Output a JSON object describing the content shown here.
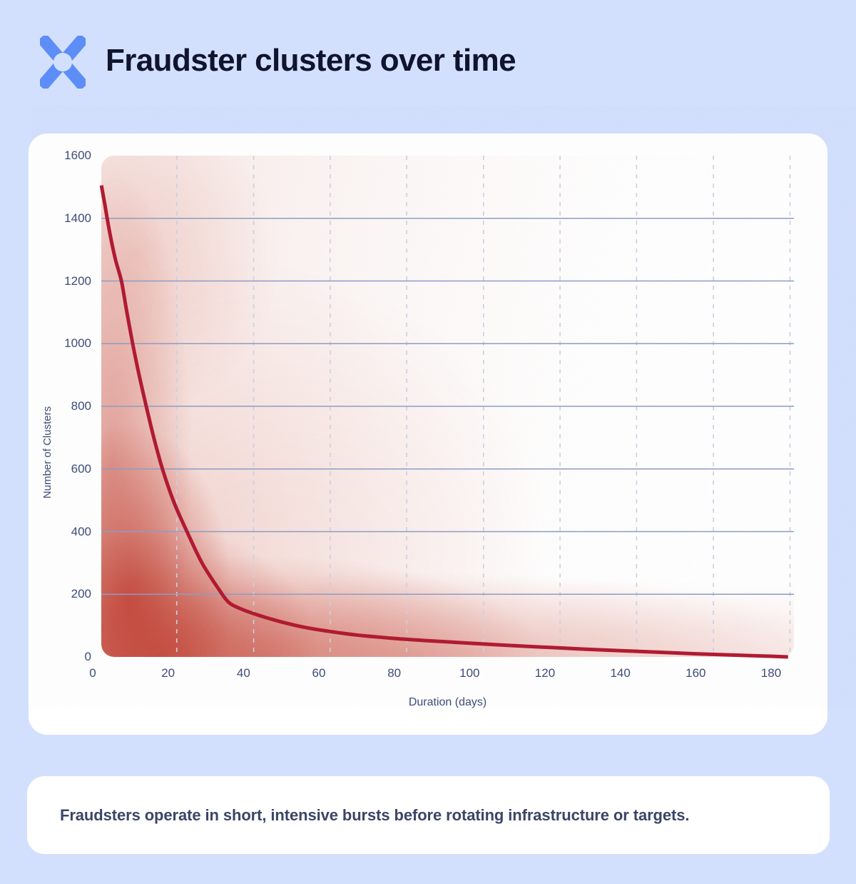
{
  "header": {
    "title": "Fraudster clusters over time",
    "logo_icon": "x-mark-logo"
  },
  "colors": {
    "background": "#d3e0fd",
    "card": "#ffffff",
    "title_text": "#10142e",
    "axis_text": "#3e4c78",
    "grid_solid": "#8d9cc5",
    "grid_dashed": "#c9d0e3",
    "line": "#b01b31",
    "density": "#c4473a",
    "logo": "#5d8df6",
    "caption_text": "#3b4566"
  },
  "chart_data": {
    "type": "line",
    "xlabel": "Duration (days)",
    "ylabel": "Number of Clusters",
    "xlim": [
      0,
      186
    ],
    "ylim": [
      0,
      1600
    ],
    "x_ticks": [
      0,
      20,
      40,
      60,
      80,
      100,
      120,
      140,
      160,
      180
    ],
    "y_ticks": [
      0,
      200,
      400,
      600,
      800,
      1000,
      1200,
      1400,
      1600
    ],
    "grid": {
      "horizontal": "solid",
      "vertical": "dashed",
      "legend": "none"
    },
    "vgrid_days": [
      22.3,
      42.7,
      63.0,
      83.3,
      103.7,
      124.0,
      144.3,
      164.7,
      185.0
    ],
    "series": [
      {
        "name": "fraudster-clusters",
        "color": "#b01b31",
        "points": [
          [
            2.3,
            1505
          ],
          [
            3.2,
            1445
          ],
          [
            4.5,
            1355
          ],
          [
            6,
            1270
          ],
          [
            7.6,
            1200
          ],
          [
            9,
            1105
          ],
          [
            10.6,
            1000
          ],
          [
            12.3,
            900
          ],
          [
            14.2,
            800
          ],
          [
            16.2,
            700
          ],
          [
            18.5,
            600
          ],
          [
            21.5,
            495
          ],
          [
            25,
            400
          ],
          [
            29,
            300
          ],
          [
            33.5,
            215
          ],
          [
            36,
            175
          ],
          [
            39,
            155
          ],
          [
            44,
            133
          ],
          [
            50,
            112
          ],
          [
            56,
            95
          ],
          [
            62,
            83
          ],
          [
            70,
            70
          ],
          [
            80,
            59
          ],
          [
            90,
            51
          ],
          [
            100,
            44
          ],
          [
            110,
            37
          ],
          [
            120,
            31
          ],
          [
            130,
            25
          ],
          [
            140,
            20
          ],
          [
            150,
            15
          ],
          [
            160,
            10
          ],
          [
            170,
            6
          ],
          [
            178,
            3
          ],
          [
            184.5,
            0
          ]
        ]
      }
    ],
    "density_overlay": {
      "description": "red KDE-style density cloud concentrated at short durations and low cluster counts, fading toward the top and right",
      "color": "#c4473a"
    }
  },
  "caption": {
    "text": "Fraudsters operate in short, intensive bursts before rotating infrastructure or targets."
  }
}
